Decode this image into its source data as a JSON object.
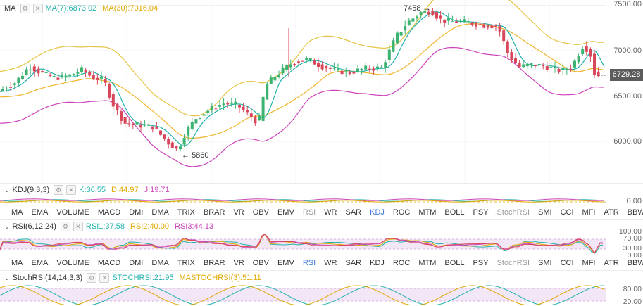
{
  "main": {
    "legend": {
      "name": "MA",
      "ma7": "MA(7):6873.02",
      "ma30": "MA(30):7016.04"
    },
    "high_label": "7458",
    "low_label": "5860",
    "current_price": "6729.28",
    "price_ticks": [
      "7500.00",
      "7000.00",
      "6500.00",
      "6000.00"
    ]
  },
  "kdj": {
    "name": "KDJ(9,3,3)",
    "k": "K:36.55",
    "d": "D:44.97",
    "j": "J:19.71",
    "tick": "0.00"
  },
  "rsi": {
    "name": "RSI(6,12,24)",
    "rsi1": "RSI1:37.58",
    "rsi2": "RSI2:40.00",
    "rsi3": "RSI3:44.13",
    "ticks": [
      "100.00",
      "70.00",
      "30.00",
      "0.00"
    ]
  },
  "stochrsi": {
    "name": "StochRSI(14,14,3,3)",
    "k": "STOCHRSI:21.95",
    "d": "MASTOCHRSI(3):51.11",
    "ticks": [
      "80.00",
      "20.00"
    ]
  },
  "indicator_tabs_1": [
    "MA",
    "EMA",
    "VOLUME",
    "MACD",
    "DMI",
    "DMA",
    "TRIX",
    "BRAR",
    "VR",
    "OBV",
    "EMV",
    "RSI",
    "WR",
    "SAR",
    "KDJ",
    "ROC",
    "MTM",
    "BOLL",
    "PSY",
    "StochRSI",
    "SMI",
    "CCI",
    "MFI",
    "ATR",
    "BBW"
  ],
  "indicator_tabs_2": [
    "MA",
    "EMA",
    "VOLUME",
    "MACD",
    "DMI",
    "DMA",
    "TRIX",
    "BRAR",
    "VR",
    "OBV",
    "EMV",
    "RSI",
    "WR",
    "SAR",
    "KDJ",
    "ROC",
    "MTM",
    "BOLL",
    "PSY",
    "StochRSI",
    "SMI",
    "CCI",
    "MFI",
    "ATR",
    "BBW"
  ],
  "colors": {
    "up": "#3cb371",
    "down": "#d9475a",
    "ma7": "#20b2aa",
    "ma30": "#f0b429",
    "boll_upper": "#e6c240",
    "boll_lower": "#cc44bb",
    "tab_active": "#3f7ad6"
  }
}
